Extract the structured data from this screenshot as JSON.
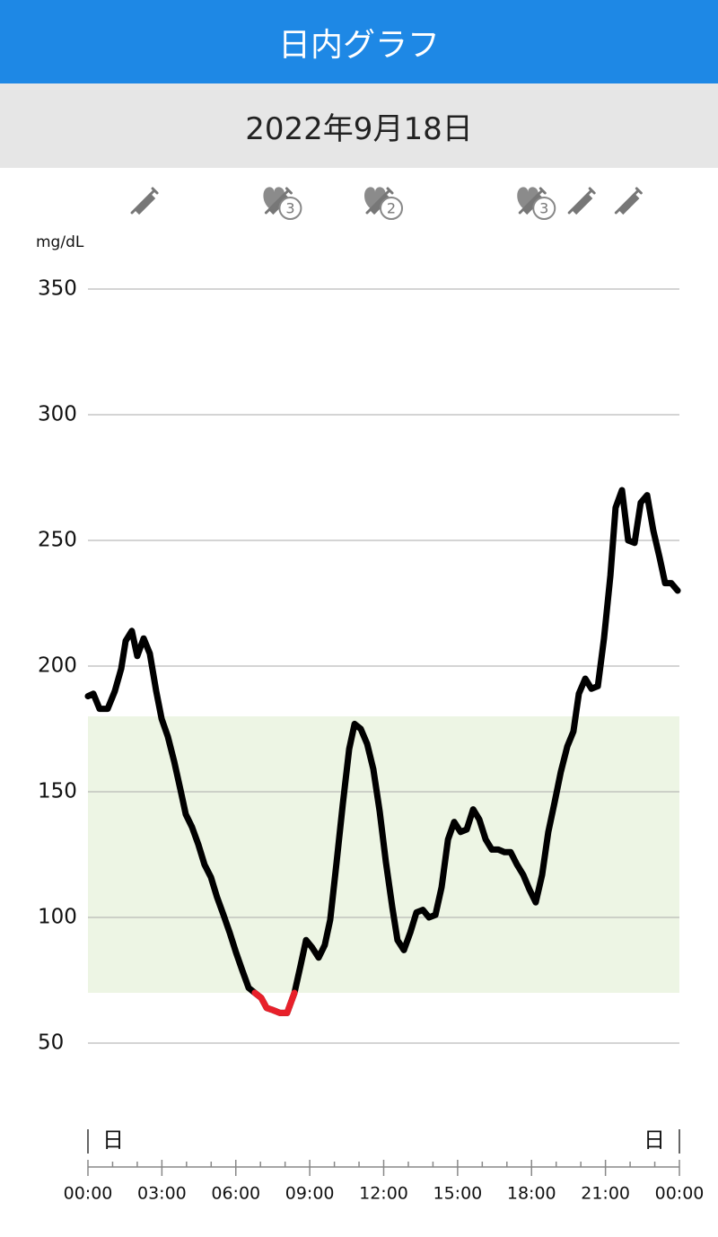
{
  "header": {
    "title": "日内グラフ",
    "date": "2022年9月18日"
  },
  "chart_data": {
    "type": "line",
    "y_label": "mg/dL",
    "x": [
      0,
      0.22,
      0.47,
      0.8,
      1.09,
      1.35,
      1.53,
      1.78,
      2.0,
      2.26,
      2.51,
      2.77,
      2.99,
      3.24,
      3.5,
      3.75,
      3.97,
      4.22,
      4.48,
      4.73,
      4.99,
      5.24,
      5.5,
      5.75,
      6.01,
      6.26,
      6.52,
      6.77,
      7.03,
      7.25,
      7.54,
      7.79,
      8.08,
      8.38,
      8.63,
      8.85,
      9.1,
      9.36,
      9.61,
      9.83,
      10.09,
      10.34,
      10.6,
      10.82,
      11.07,
      11.33,
      11.58,
      11.84,
      12.09,
      12.35,
      12.56,
      12.82,
      13.08,
      13.33,
      13.59,
      13.84,
      14.1,
      14.35,
      14.61,
      14.86,
      15.12,
      15.37,
      15.63,
      15.88,
      16.14,
      16.39,
      16.65,
      16.9,
      17.15,
      17.41,
      17.66,
      17.92,
      18.17,
      18.43,
      18.68,
      18.94,
      19.19,
      19.45,
      19.7,
      19.92,
      20.18,
      20.43,
      20.69,
      20.94,
      21.2,
      21.41,
      21.67,
      21.92,
      22.18,
      22.43,
      22.69,
      22.94,
      23.2,
      23.42,
      23.67,
      23.93
    ],
    "series": [
      {
        "color": "#000000",
        "low_color": "#e8202a",
        "values": [
          188,
          189,
          183,
          183,
          190,
          199,
          210,
          214,
          204,
          211,
          205,
          190,
          179,
          172,
          162,
          151,
          141,
          136,
          129,
          121,
          116,
          108,
          101,
          94,
          86,
          79,
          72,
          70,
          68,
          64,
          63,
          62,
          62,
          70,
          81,
          91,
          88,
          84,
          89,
          99,
          122,
          145,
          167,
          177,
          175,
          169,
          159,
          142,
          122,
          104,
          91,
          87,
          94,
          102,
          103,
          100,
          101,
          112,
          131,
          138,
          134,
          135,
          143,
          139,
          131,
          127,
          127,
          126,
          126,
          121,
          117,
          111,
          106,
          117,
          134,
          146,
          158,
          168,
          174,
          189,
          195,
          191,
          192,
          211,
          236,
          263,
          270,
          250,
          249,
          265,
          268,
          254,
          243,
          233,
          233,
          230
        ]
      }
    ],
    "target_range": [
      70,
      180
    ],
    "target_color": "#edf5e4",
    "xlim": [
      0,
      24
    ],
    "ylim": [
      0,
      350
    ],
    "yticks": [
      50,
      100,
      150,
      200,
      250,
      300,
      350
    ],
    "grid": true,
    "xticks": [
      {
        "value": 0,
        "label": "00:00"
      },
      {
        "value": 3,
        "label": "03:00"
      },
      {
        "value": 6,
        "label": "06:00"
      },
      {
        "value": 9,
        "label": "09:00"
      },
      {
        "value": 12,
        "label": "12:00"
      },
      {
        "value": 15,
        "label": "15:00"
      },
      {
        "value": 18,
        "label": "18:00"
      },
      {
        "value": 21,
        "label": "21:00"
      },
      {
        "value": 24,
        "label": "00:00"
      }
    ],
    "xminorticks": [
      1,
      2,
      4,
      5,
      7,
      8,
      10,
      11,
      13,
      14,
      16,
      17,
      19,
      20,
      22,
      23
    ],
    "day_labels": [
      "日",
      "日"
    ],
    "events": [
      {
        "time": 2.26
      },
      {
        "time": 7.7,
        "badge": "3"
      },
      {
        "time": 11.8,
        "badge": "2"
      },
      {
        "time": 18.0,
        "badge": "3"
      },
      {
        "time": 20.0
      },
      {
        "time": 21.9
      }
    ]
  }
}
